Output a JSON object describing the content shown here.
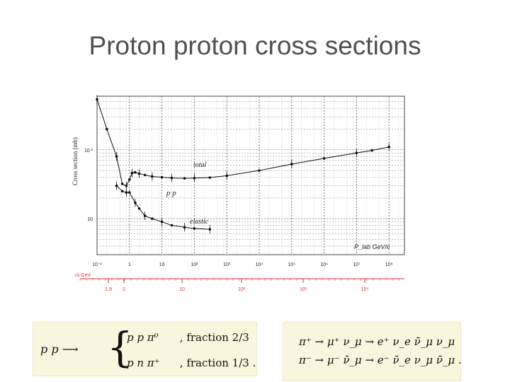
{
  "slide": {
    "title": "Proton proton cross sections"
  },
  "chart_data": {
    "type": "scatter",
    "ylabel": "Cross section (mb)",
    "xlabel": "P_lab GeV/c",
    "x_scale": "log",
    "y_scale": "log",
    "xlim": [
      0.1,
      300000000
    ],
    "ylim": [
      3,
      600
    ],
    "x_ticks": [
      "10⁻¹",
      "1",
      "10",
      "10²",
      "10³",
      "10⁴",
      "10⁵",
      "10⁶",
      "10⁷",
      "10⁸"
    ],
    "y_ticks": [
      "10 ²",
      "10"
    ],
    "secondary_axis": {
      "label": "√s GeV",
      "ticks": [
        "1.9",
        "2",
        "10",
        "10²",
        "10³",
        "10⁴"
      ]
    },
    "grid": true,
    "annotations": [
      "total",
      "p p",
      "elastic"
    ],
    "series": [
      {
        "name": "total",
        "x": [
          0.1,
          0.2,
          0.4,
          0.6,
          0.8,
          1.0,
          1.2,
          1.5,
          2,
          3,
          5,
          10,
          20,
          50,
          100,
          300,
          1000,
          10000,
          100000,
          1000000,
          10000000,
          30000000,
          100000000
        ],
        "y": [
          540,
          200,
          80,
          32,
          30,
          37,
          46,
          47,
          45,
          43,
          41,
          40,
          39,
          38.5,
          38.8,
          39.5,
          42,
          50,
          62,
          75,
          90,
          98,
          110
        ]
      },
      {
        "name": "elastic",
        "x": [
          0.4,
          0.6,
          0.8,
          1.0,
          1.5,
          2,
          3,
          5,
          10,
          20,
          50,
          100,
          300
        ],
        "y": [
          30,
          25,
          24,
          24,
          17,
          14,
          11,
          10,
          9,
          8,
          7.5,
          7.2,
          7.0
        ]
      }
    ]
  },
  "equations": {
    "pp_lhs": "p p ⟶",
    "pp_row1_product": "p p π⁰",
    "pp_row1_fraction": ", fraction 2/3",
    "pp_row2_product": "p n π⁺",
    "pp_row2_fraction": ", fraction 1/3 .",
    "pi_plus_chain": "π⁺ → μ⁺ ν_μ → e⁺ ν_e ν̄_μ ν_μ",
    "pi_minus_chain": "π⁻ → μ⁻ ν̄_μ → e⁻ ν̄_e ν_μ ν̄_μ ."
  }
}
